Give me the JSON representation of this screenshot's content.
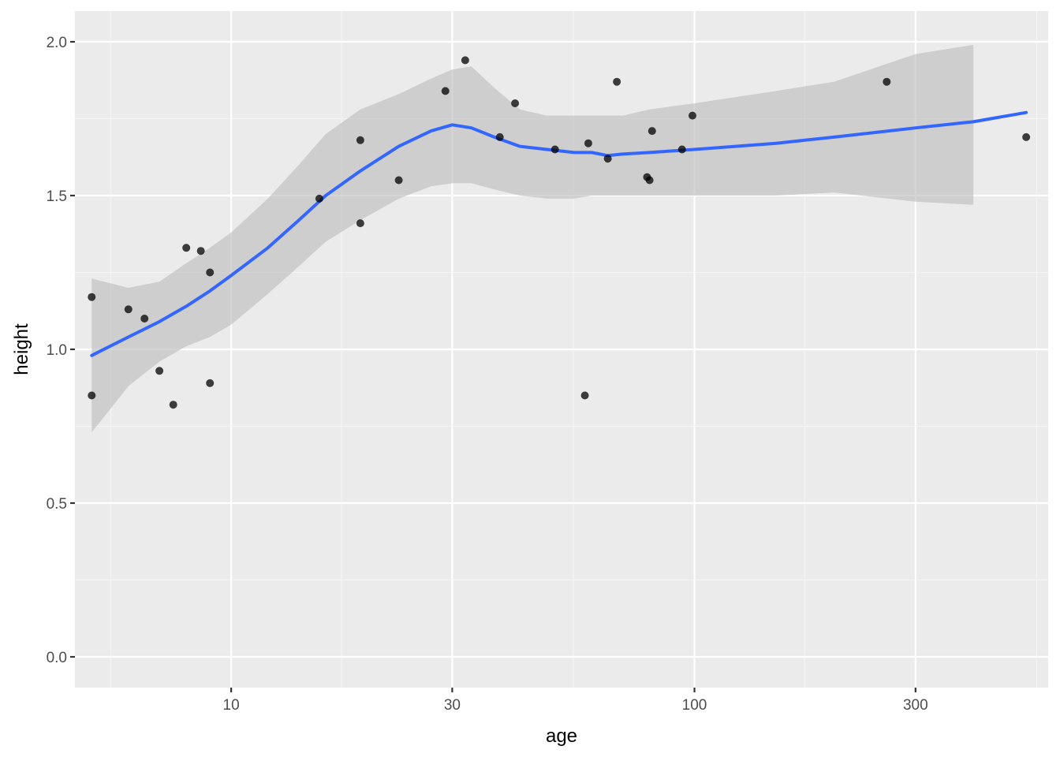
{
  "chart_data": {
    "type": "scatter",
    "title": "",
    "xlabel": "age",
    "ylabel": "height",
    "x_scale": "log10",
    "xlim": [
      4.6,
      580
    ],
    "ylim": [
      -0.1,
      2.1
    ],
    "x_ticks": [
      {
        "value": 10,
        "label": "10"
      },
      {
        "value": 30,
        "label": "30"
      },
      {
        "value": 100,
        "label": "100"
      },
      {
        "value": 300,
        "label": "300"
      }
    ],
    "x_minor_ticks": [
      5.5,
      17.3,
      54.8,
      173,
      548
    ],
    "y_ticks": [
      {
        "value": 0.0,
        "label": "0.0"
      },
      {
        "value": 0.5,
        "label": "0.5"
      },
      {
        "value": 1.0,
        "label": "1.0"
      },
      {
        "value": 1.5,
        "label": "1.5"
      },
      {
        "value": 2.0,
        "label": "2.0"
      }
    ],
    "y_minor_ticks": [
      0.25,
      0.75,
      1.25,
      1.75
    ],
    "grid": true,
    "colors": {
      "panel": "#ebebeb",
      "grid_major": "#ffffff",
      "grid_minor": "#f5f5f5",
      "points": "#000000",
      "smooth_line": "#3366ff",
      "confidence_band": "#bfbfbf"
    },
    "points": [
      {
        "x": 5,
        "y": 1.17
      },
      {
        "x": 5,
        "y": 0.85
      },
      {
        "x": 6,
        "y": 1.13
      },
      {
        "x": 6.5,
        "y": 1.1
      },
      {
        "x": 7,
        "y": 0.93
      },
      {
        "x": 7.5,
        "y": 0.82
      },
      {
        "x": 8,
        "y": 1.33
      },
      {
        "x": 8.6,
        "y": 1.32
      },
      {
        "x": 9,
        "y": 1.25
      },
      {
        "x": 9,
        "y": 0.89
      },
      {
        "x": 15.5,
        "y": 1.49
      },
      {
        "x": 19,
        "y": 1.68
      },
      {
        "x": 19,
        "y": 1.41
      },
      {
        "x": 23,
        "y": 1.55
      },
      {
        "x": 29,
        "y": 1.84
      },
      {
        "x": 32,
        "y": 1.94
      },
      {
        "x": 38,
        "y": 1.69
      },
      {
        "x": 41,
        "y": 1.8
      },
      {
        "x": 50,
        "y": 1.65
      },
      {
        "x": 58,
        "y": 0.85
      },
      {
        "x": 59,
        "y": 1.67
      },
      {
        "x": 65,
        "y": 1.62
      },
      {
        "x": 68,
        "y": 1.87
      },
      {
        "x": 79,
        "y": 1.56
      },
      {
        "x": 80,
        "y": 1.55
      },
      {
        "x": 81,
        "y": 1.71
      },
      {
        "x": 94,
        "y": 1.65
      },
      {
        "x": 99,
        "y": 1.76
      },
      {
        "x": 260,
        "y": 1.87
      },
      {
        "x": 520,
        "y": 1.69
      }
    ],
    "smooth": {
      "x": [
        5,
        6,
        7,
        8,
        9,
        10,
        12,
        14,
        16,
        19,
        23,
        27,
        30,
        33,
        37,
        42,
        48,
        55,
        60,
        65,
        70,
        80,
        100,
        150,
        200,
        300,
        400,
        520
      ],
      "y": [
        0.98,
        1.04,
        1.09,
        1.14,
        1.19,
        1.24,
        1.33,
        1.42,
        1.5,
        1.58,
        1.66,
        1.71,
        1.73,
        1.72,
        1.69,
        1.66,
        1.65,
        1.64,
        1.64,
        1.63,
        1.635,
        1.64,
        1.65,
        1.67,
        1.69,
        1.72,
        1.74,
        1.77
      ],
      "upper": [
        1.23,
        1.2,
        1.22,
        1.28,
        1.33,
        1.38,
        1.49,
        1.6,
        1.7,
        1.78,
        1.83,
        1.88,
        1.91,
        1.92,
        1.85,
        1.78,
        1.76,
        1.76,
        1.76,
        1.76,
        1.76,
        1.78,
        1.8,
        1.84,
        1.87,
        1.96,
        1.99,
        null
      ],
      "lower": [
        0.73,
        0.88,
        0.96,
        1.01,
        1.04,
        1.08,
        1.18,
        1.27,
        1.35,
        1.42,
        1.49,
        1.53,
        1.54,
        1.54,
        1.52,
        1.5,
        1.49,
        1.49,
        1.5,
        1.5,
        1.5,
        1.5,
        1.5,
        1.5,
        1.51,
        1.48,
        1.47,
        null
      ]
    }
  }
}
